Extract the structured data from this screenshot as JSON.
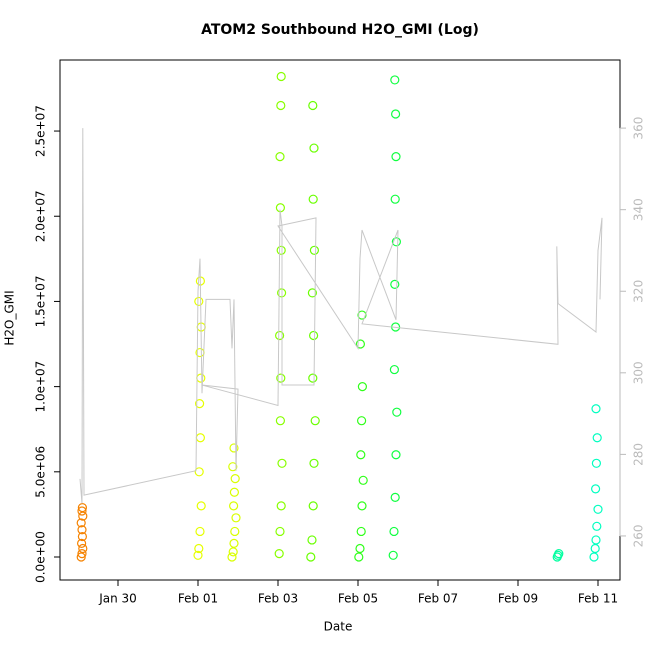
{
  "chart_data": {
    "type": "scatter",
    "title": "ATOM2 Southbound H2O_GMI (Log)",
    "x_label": "Date",
    "y_label": "H2O_GMI",
    "xlim": [
      28.55,
      42.55
    ],
    "ylim": [
      -1350000,
      29170000
    ],
    "y2lim": [
      249.2,
      376.7
    ],
    "xticks": [
      {
        "value": 30,
        "label": "Jan 30"
      },
      {
        "value": 32,
        "label": "Feb 01"
      },
      {
        "value": 34,
        "label": "Feb 03"
      },
      {
        "value": 36,
        "label": "Feb 05"
      },
      {
        "value": 38,
        "label": "Feb 07"
      },
      {
        "value": 40,
        "label": "Feb 09"
      },
      {
        "value": 42,
        "label": "Feb 11"
      }
    ],
    "yticks": [
      {
        "value": 0,
        "label": "0.0e+00"
      },
      {
        "value": 5000000,
        "label": "5.0e+06"
      },
      {
        "value": 10000000,
        "label": "1.0e+07"
      },
      {
        "value": 15000000,
        "label": "1.5e+07"
      },
      {
        "value": 20000000,
        "label": "2.0e+07"
      },
      {
        "value": 25000000,
        "label": "2.5e+07"
      }
    ],
    "y2ticks": [
      260,
      280,
      300,
      320,
      340,
      360
    ],
    "series": [
      {
        "color": "#f58200",
        "x": [
          29.08,
          29.1,
          29.12,
          29.09,
          29.11,
          29.1,
          29.08,
          29.12,
          29.1,
          29.11
        ],
        "values": [
          0,
          200000,
          500000,
          800000,
          1200000,
          1600000,
          2000000,
          2400000,
          2700000,
          2900000
        ]
      },
      {
        "color": "#e6ff00",
        "x": [
          32.0,
          32.02,
          32.05,
          32.08,
          32.03,
          32.06,
          32.04,
          32.07,
          32.05,
          32.08,
          32.02,
          32.06
        ],
        "values": [
          100000,
          500000,
          1500000,
          3000000,
          5000000,
          7000000,
          9000000,
          10500000,
          12000000,
          13500000,
          15000000,
          16200000
        ]
      },
      {
        "color": "#d9ff00",
        "x": [
          32.85,
          32.88,
          32.9,
          32.92,
          32.95,
          32.89,
          32.91,
          32.93,
          32.87,
          32.9
        ],
        "values": [
          0,
          300000,
          800000,
          1500000,
          2300000,
          3000000,
          3800000,
          4600000,
          5300000,
          6400000
        ]
      },
      {
        "color": "#88ff00",
        "x": [
          34.03,
          34.05,
          34.08,
          34.1,
          34.06,
          34.07,
          34.04,
          34.09,
          34.08,
          34.06,
          34.05,
          34.07,
          34.08
        ],
        "values": [
          200000,
          1500000,
          3000000,
          5500000,
          8000000,
          10500000,
          13000000,
          15500000,
          18000000,
          20500000,
          23500000,
          26500000,
          28200000
        ]
      },
      {
        "color": "#6aff00",
        "x": [
          34.82,
          34.85,
          34.88,
          34.9,
          34.93,
          34.87,
          34.89,
          34.86,
          34.91,
          34.88,
          34.9,
          34.87
        ],
        "values": [
          0,
          1000000,
          3000000,
          5500000,
          8000000,
          10500000,
          13000000,
          15500000,
          18000000,
          21000000,
          24000000,
          26500000
        ]
      },
      {
        "color": "#30ff1a",
        "x": [
          36.02,
          36.05,
          36.08,
          36.1,
          36.13,
          36.07,
          36.09,
          36.11,
          36.06,
          36.1
        ],
        "values": [
          0,
          500000,
          1500000,
          3000000,
          4500000,
          6000000,
          8000000,
          10000000,
          12500000,
          14200000
        ]
      },
      {
        "color": "#10ff40",
        "x": [
          36.88,
          36.9,
          36.93,
          36.95,
          36.97,
          36.91,
          36.94,
          36.92,
          36.96,
          36.93,
          36.95,
          36.94,
          36.92
        ],
        "values": [
          100000,
          1500000,
          3500000,
          6000000,
          8500000,
          11000000,
          13500000,
          16000000,
          18500000,
          21000000,
          23500000,
          26000000,
          28000000
        ]
      },
      {
        "color": "#00ffa0",
        "x": [
          40.98,
          41.0,
          41.02
        ],
        "values": [
          0,
          100000,
          200000
        ]
      },
      {
        "color": "#00ffc0",
        "x": [
          41.9,
          41.93,
          41.95,
          41.97,
          42.0,
          41.94,
          41.96,
          41.98,
          41.95
        ],
        "values": [
          0,
          500000,
          1000000,
          1800000,
          2800000,
          4000000,
          5500000,
          7000000,
          8700000
        ]
      },
      {
        "type": "line",
        "axis": "y2",
        "color": "#c8c8c8",
        "x": [
          29.05,
          29.1,
          29.12,
          29.15,
          31.95,
          32.0,
          32.05,
          32.1,
          32.2,
          32.8,
          32.85,
          32.9,
          32.95,
          33.0,
          32.1,
          34.0,
          34.05,
          34.1,
          34.1,
          34.9,
          34.95,
          34.0,
          36.0,
          36.05,
          36.1,
          36.95,
          37.0,
          36.1,
          41.0,
          40.97,
          41.0,
          41.95,
          42.0,
          42.1,
          42.05
        ],
        "values": [
          274,
          268,
          360,
          270,
          276,
          320,
          328,
          295,
          318,
          318,
          306,
          318,
          276,
          296,
          297,
          292,
          340,
          336,
          297,
          297,
          338,
          336,
          306,
          328,
          335,
          313,
          335,
          312,
          307,
          331,
          317,
          310,
          330,
          338,
          318
        ]
      }
    ]
  }
}
